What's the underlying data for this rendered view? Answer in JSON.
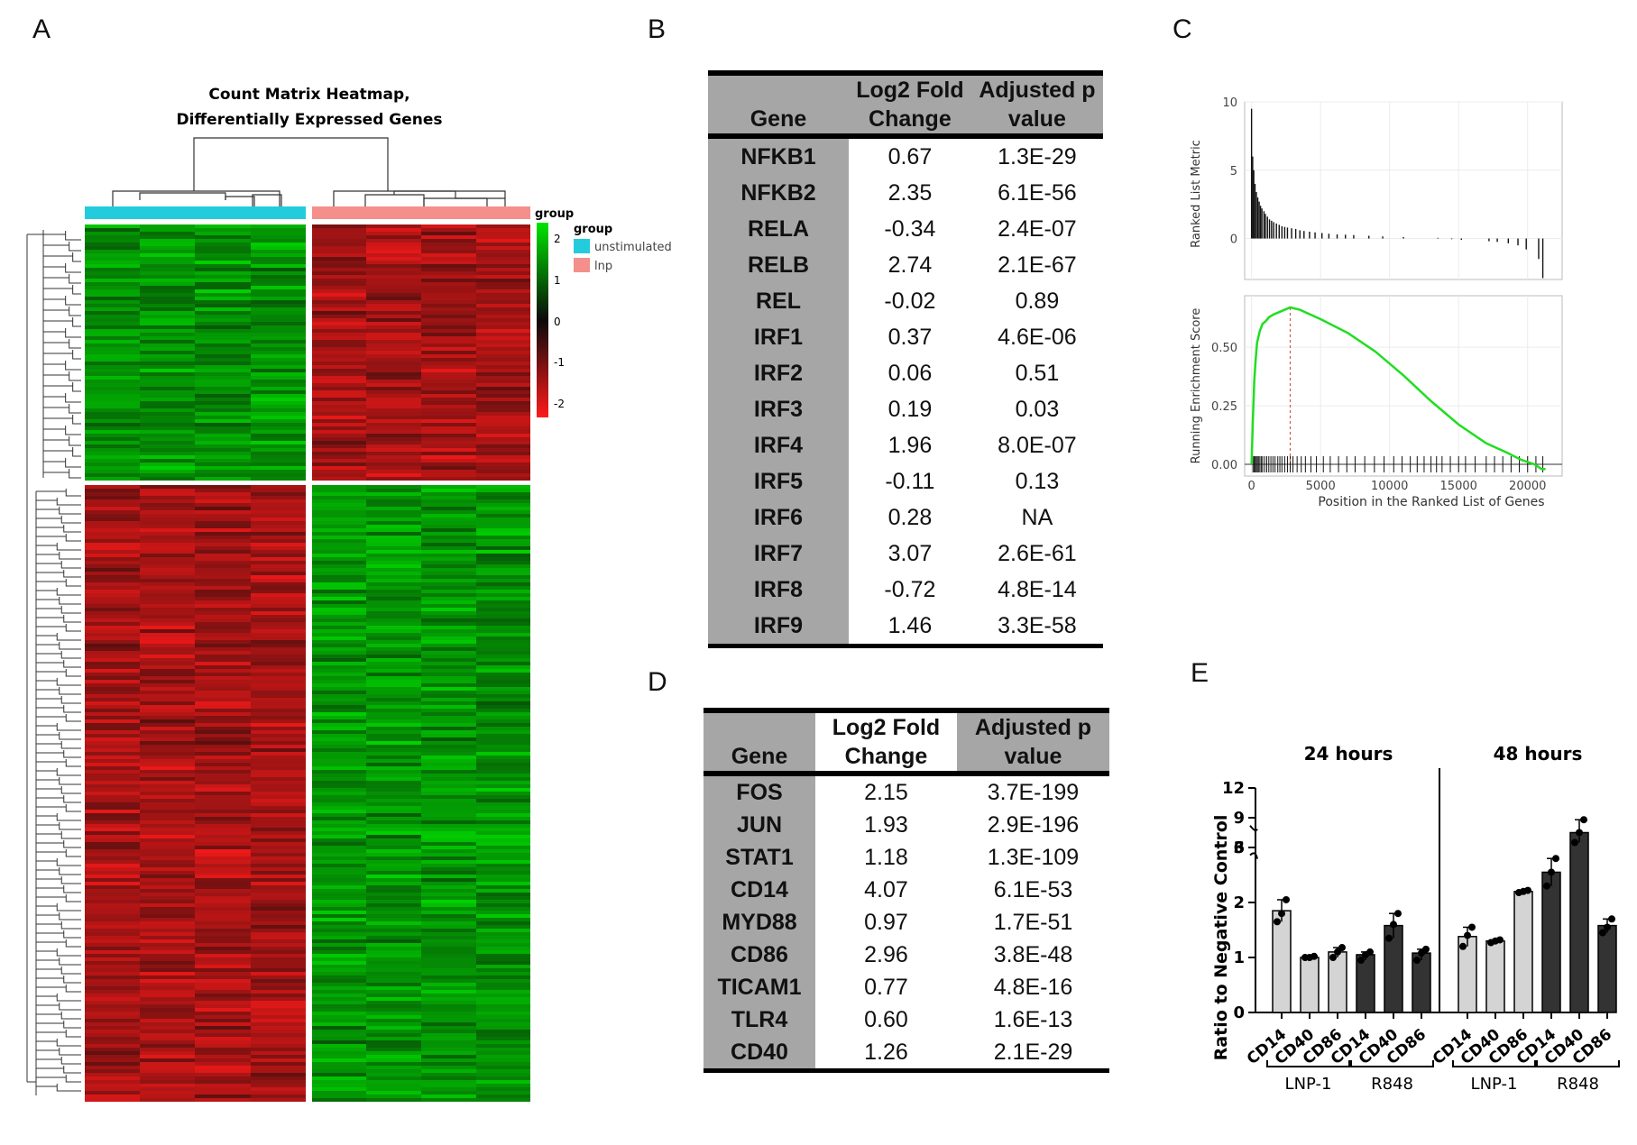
{
  "panels": {
    "a": "A",
    "b": "B",
    "c": "C",
    "d": "D",
    "e": "E"
  },
  "heatmap": {
    "title_line1": "Count Matrix Heatmap,",
    "title_line2": "Differentially Expressed Genes",
    "group_bar_label": "group",
    "legend_title": "group",
    "legend_items": [
      {
        "label": "unstimulated",
        "color": "#22ccdd"
      },
      {
        "label": "lnp",
        "color": "#f48f8b"
      }
    ],
    "scale_ticks": [
      "2",
      "1",
      "0",
      "-1",
      "-2"
    ],
    "colors": {
      "high": "#00e400",
      "mid": "#0a0a0a",
      "low": "#ff1a1a"
    }
  },
  "table_b": {
    "headers": {
      "gene": "Gene",
      "fc1": "Log2 Fold",
      "fc2": "Change",
      "p1": "Adjusted p",
      "p2": "value"
    },
    "rows": [
      [
        "NFKB1",
        "0.67",
        "1.3E-29"
      ],
      [
        "NFKB2",
        "2.35",
        "6.1E-56"
      ],
      [
        "RELA",
        "-0.34",
        "2.4E-07"
      ],
      [
        "RELB",
        "2.74",
        "2.1E-67"
      ],
      [
        "REL",
        "-0.02",
        "0.89"
      ],
      [
        "IRF1",
        "0.37",
        "4.6E-06"
      ],
      [
        "IRF2",
        "0.06",
        "0.51"
      ],
      [
        "IRF3",
        "0.19",
        "0.03"
      ],
      [
        "IRF4",
        "1.96",
        "8.0E-07"
      ],
      [
        "IRF5",
        "-0.11",
        "0.13"
      ],
      [
        "IRF6",
        "0.28",
        "NA"
      ],
      [
        "IRF7",
        "3.07",
        "2.6E-61"
      ],
      [
        "IRF8",
        "-0.72",
        "4.8E-14"
      ],
      [
        "IRF9",
        "1.46",
        "3.3E-58"
      ]
    ]
  },
  "table_d": {
    "headers": {
      "gene": "Gene",
      "fc1": "Log2 Fold",
      "fc2": "Change",
      "p1": "Adjusted p",
      "p2": "value"
    },
    "rows": [
      [
        "FOS",
        "2.15",
        "3.7E-199"
      ],
      [
        "JUN",
        "1.93",
        "2.9E-196"
      ],
      [
        "STAT1",
        "1.18",
        "1.3E-109"
      ],
      [
        "CD14",
        "4.07",
        "6.1E-53"
      ],
      [
        "MYD88",
        "0.97",
        "1.7E-51"
      ],
      [
        "CD86",
        "2.96",
        "3.8E-48"
      ],
      [
        "TICAM1",
        "0.77",
        "4.8E-16"
      ],
      [
        "TLR4",
        "0.60",
        "1.6E-13"
      ],
      [
        "CD40",
        "1.26",
        "2.1E-29"
      ]
    ]
  },
  "chart_data": [
    {
      "type": "bar",
      "panel": "C-top",
      "ylabel": "Ranked List Metric",
      "yticks": [
        "10",
        "5",
        "0"
      ],
      "ylim": [
        -3,
        10
      ],
      "xlim": [
        0,
        21500
      ],
      "spikes": [
        [
          0,
          9.5
        ],
        [
          80,
          6
        ],
        [
          160,
          5
        ],
        [
          250,
          4
        ],
        [
          350,
          3.4
        ],
        [
          450,
          3
        ],
        [
          550,
          2.7
        ],
        [
          650,
          2.4
        ],
        [
          750,
          2.2
        ],
        [
          900,
          2
        ],
        [
          1000,
          1.8
        ],
        [
          1150,
          1.6
        ],
        [
          1300,
          1.4
        ],
        [
          1450,
          1.3
        ],
        [
          1600,
          1.2
        ],
        [
          1800,
          1.1
        ],
        [
          2000,
          1
        ],
        [
          2200,
          0.9
        ],
        [
          2400,
          0.85
        ],
        [
          2600,
          0.8
        ],
        [
          2900,
          0.75
        ],
        [
          3200,
          0.7
        ],
        [
          3500,
          0.6
        ],
        [
          3800,
          0.55
        ],
        [
          4200,
          0.5
        ],
        [
          4600,
          0.45
        ],
        [
          5100,
          0.4
        ],
        [
          5600,
          0.35
        ],
        [
          6200,
          0.3
        ],
        [
          6800,
          0.28
        ],
        [
          7400,
          0.25
        ],
        [
          8500,
          0.2
        ],
        [
          9500,
          0.15
        ],
        [
          11000,
          0.1
        ],
        [
          13500,
          0.05
        ],
        [
          14500,
          -0.05
        ],
        [
          15200,
          -0.1
        ],
        [
          17200,
          -0.2
        ],
        [
          17800,
          -0.25
        ],
        [
          18600,
          -0.35
        ],
        [
          19300,
          -0.5
        ],
        [
          19900,
          -0.8
        ],
        [
          20800,
          -1.5
        ],
        [
          21100,
          -2.9
        ]
      ]
    },
    {
      "type": "line",
      "panel": "C-bottom",
      "xlabel": "Position in the Ranked List of Genes",
      "ylabel": "Running Enrichment Score",
      "xticks": [
        0,
        5000,
        10000,
        15000,
        20000
      ],
      "xtick_labels": [
        "0",
        "5000",
        "10000",
        "15000",
        "20000"
      ],
      "yticks": [
        0.0,
        0.25,
        0.5
      ],
      "ytick_labels": [
        "0.00",
        "0.25",
        "0.50"
      ],
      "xlim": [
        -500,
        22500
      ],
      "ylim": [
        -0.05,
        0.72
      ],
      "peak_x": 2800,
      "series": [
        {
          "color": "#22dd22",
          "x": [
            0,
            100,
            200,
            300,
            400,
            600,
            800,
            1000,
            1300,
            1600,
            2000,
            2400,
            2800,
            3500,
            5000,
            7000,
            9000,
            11000,
            13000,
            15000,
            17000,
            18500,
            19500,
            20500,
            21000,
            21300
          ],
          "values": [
            0.0,
            0.2,
            0.36,
            0.45,
            0.52,
            0.57,
            0.6,
            0.61,
            0.63,
            0.64,
            0.65,
            0.66,
            0.67,
            0.66,
            0.62,
            0.56,
            0.48,
            0.38,
            0.27,
            0.17,
            0.09,
            0.05,
            0.02,
            0.0,
            -0.02,
            -0.02
          ]
        }
      ],
      "hits": [
        100,
        180,
        260,
        340,
        420,
        500,
        600,
        700,
        800,
        950,
        1100,
        1250,
        1400,
        1550,
        1700,
        1900,
        2050,
        2200,
        2400,
        2600,
        2800,
        3000,
        3300,
        3600,
        3900,
        4300,
        4700,
        5200,
        5700,
        6300,
        6900,
        7500,
        8200,
        8900,
        9600,
        10300,
        10900,
        11500,
        12000,
        12500,
        13000,
        13400,
        13800,
        14400,
        15000,
        15500,
        16200,
        17000,
        17600,
        18200,
        18800,
        19400,
        20000,
        20600,
        21100
      ]
    },
    {
      "type": "bar",
      "panel": "E",
      "ylabel": "Ratio to Negative Control",
      "ylim": [
        0,
        12
      ],
      "y_break": [
        3,
        6
      ],
      "yticks_lower": [
        "0",
        "1",
        "2",
        "3"
      ],
      "yticks_upper": [
        "6",
        "9",
        "12"
      ],
      "groups": [
        {
          "title": "24 hours",
          "categories": [
            "CD14",
            "CD40",
            "CD86",
            "CD14",
            "CD40",
            "CD86"
          ],
          "treatments": [
            "LNP-1",
            "R848"
          ],
          "values": [
            1.85,
            1.0,
            1.1,
            1.05,
            1.58,
            1.08
          ],
          "points": [
            [
              1.65,
              1.8,
              2.05
            ],
            [
              1.0,
              1.0,
              1.02
            ],
            [
              1.0,
              1.1,
              1.18
            ],
            [
              0.95,
              1.05,
              1.1
            ],
            [
              1.35,
              1.6,
              1.8
            ],
            [
              0.95,
              1.08,
              1.15
            ]
          ]
        },
        {
          "title": "48 hours",
          "categories": [
            "CD14",
            "CD40",
            "CD86",
            "CD14",
            "CD40",
            "CD86"
          ],
          "treatments": [
            "LNP-1",
            "R848"
          ],
          "values": [
            1.38,
            1.3,
            2.2,
            2.55,
            7.5,
            1.58
          ],
          "points": [
            [
              1.2,
              1.4,
              1.55
            ],
            [
              1.27,
              1.3,
              1.32
            ],
            [
              2.18,
              2.2,
              2.22
            ],
            [
              2.3,
              2.55,
              2.8
            ],
            [
              6.5,
              7.5,
              8.8
            ],
            [
              1.45,
              1.55,
              1.7
            ]
          ]
        }
      ],
      "colors": {
        "LNP-1": "#d4d4d4",
        "R848": "#333333"
      }
    }
  ]
}
